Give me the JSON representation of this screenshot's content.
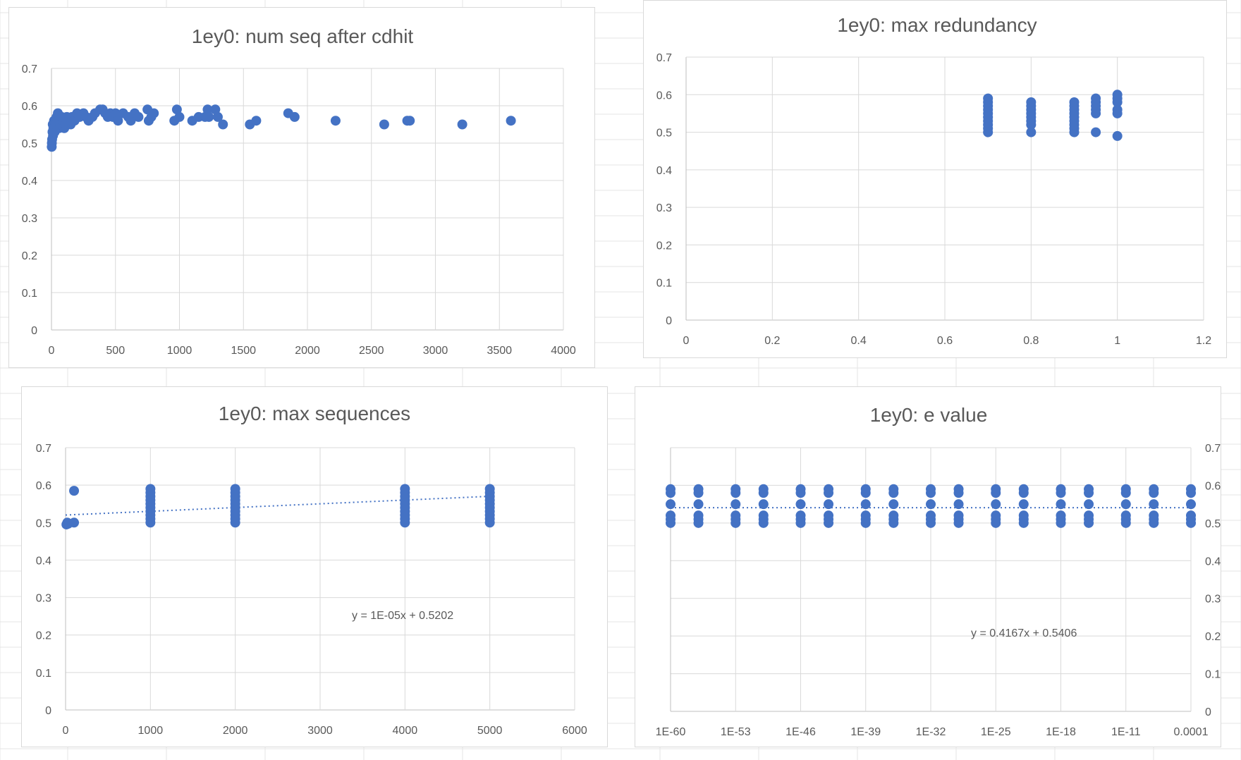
{
  "theme": {
    "marker_color": "#4472c4",
    "grid_color": "#d9d9d9",
    "text_color": "#595959"
  },
  "chart_data": [
    {
      "id": "c1",
      "type": "scatter",
      "title": "1ey0: num seq after cdhit",
      "xlabel": "",
      "ylabel": "",
      "xlim": [
        0,
        4000
      ],
      "ylim": [
        0,
        0.7
      ],
      "xticks": [
        0,
        500,
        1000,
        1500,
        2000,
        2500,
        3000,
        3500,
        4000
      ],
      "xtick_labels": [
        "0",
        "500",
        "1000",
        "1500",
        "2000",
        "2500",
        "3000",
        "3500",
        "4000"
      ],
      "yticks": [
        0,
        0.1,
        0.2,
        0.3,
        0.4,
        0.5,
        0.6,
        0.7
      ],
      "ytick_labels": [
        "0",
        "0.1",
        "0.2",
        "0.3",
        "0.4",
        "0.5",
        "0.6",
        "0.7"
      ],
      "grid": true,
      "legend": "none",
      "series": [
        {
          "points": [
            [
              2,
              0.49
            ],
            [
              3,
              0.5
            ],
            [
              5,
              0.51
            ],
            [
              8,
              0.53
            ],
            [
              10,
              0.55
            ],
            [
              12,
              0.52
            ],
            [
              15,
              0.54
            ],
            [
              20,
              0.56
            ],
            [
              25,
              0.53
            ],
            [
              30,
              0.55
            ],
            [
              40,
              0.57
            ],
            [
              50,
              0.58
            ],
            [
              55,
              0.56
            ],
            [
              60,
              0.54
            ],
            [
              70,
              0.55
            ],
            [
              80,
              0.57
            ],
            [
              90,
              0.56
            ],
            [
              100,
              0.54
            ],
            [
              110,
              0.55
            ],
            [
              120,
              0.57
            ],
            [
              130,
              0.56
            ],
            [
              150,
              0.55
            ],
            [
              160,
              0.57
            ],
            [
              180,
              0.56
            ],
            [
              200,
              0.58
            ],
            [
              220,
              0.57
            ],
            [
              250,
              0.58
            ],
            [
              270,
              0.57
            ],
            [
              290,
              0.56
            ],
            [
              320,
              0.57
            ],
            [
              340,
              0.58
            ],
            [
              380,
              0.59
            ],
            [
              400,
              0.59
            ],
            [
              420,
              0.58
            ],
            [
              440,
              0.57
            ],
            [
              460,
              0.58
            ],
            [
              480,
              0.57
            ],
            [
              500,
              0.58
            ],
            [
              520,
              0.56
            ],
            [
              560,
              0.58
            ],
            [
              600,
              0.57
            ],
            [
              620,
              0.56
            ],
            [
              650,
              0.58
            ],
            [
              680,
              0.57
            ],
            [
              750,
              0.59
            ],
            [
              760,
              0.56
            ],
            [
              780,
              0.57
            ],
            [
              800,
              0.58
            ],
            [
              960,
              0.56
            ],
            [
              980,
              0.59
            ],
            [
              1000,
              0.57
            ],
            [
              1100,
              0.56
            ],
            [
              1150,
              0.57
            ],
            [
              1200,
              0.57
            ],
            [
              1220,
              0.59
            ],
            [
              1230,
              0.57
            ],
            [
              1280,
              0.59
            ],
            [
              1300,
              0.57
            ],
            [
              1340,
              0.55
            ],
            [
              1550,
              0.55
            ],
            [
              1600,
              0.56
            ],
            [
              1850,
              0.58
            ],
            [
              1900,
              0.57
            ],
            [
              2220,
              0.56
            ],
            [
              2600,
              0.55
            ],
            [
              2780,
              0.56
            ],
            [
              2800,
              0.56
            ],
            [
              3210,
              0.55
            ],
            [
              3590,
              0.56
            ]
          ]
        }
      ]
    },
    {
      "id": "c2",
      "type": "scatter",
      "title": "1ey0: max redundancy",
      "xlabel": "",
      "ylabel": "",
      "xlim": [
        0,
        1.2
      ],
      "ylim": [
        0,
        0.7
      ],
      "xticks": [
        0,
        0.2,
        0.4,
        0.6,
        0.8,
        1,
        1.2
      ],
      "xtick_labels": [
        "0",
        "0.2",
        "0.4",
        "0.6",
        "0.8",
        "1",
        "1.2"
      ],
      "yticks": [
        0,
        0.1,
        0.2,
        0.3,
        0.4,
        0.5,
        0.6,
        0.7
      ],
      "ytick_labels": [
        "0",
        "0.1",
        "0.2",
        "0.3",
        "0.4",
        "0.5",
        "0.6",
        "0.7"
      ],
      "grid": true,
      "legend": "none",
      "series": [
        {
          "points": [
            [
              0.7,
              0.5
            ],
            [
              0.7,
              0.51
            ],
            [
              0.7,
              0.52
            ],
            [
              0.7,
              0.53
            ],
            [
              0.7,
              0.54
            ],
            [
              0.7,
              0.55
            ],
            [
              0.7,
              0.56
            ],
            [
              0.7,
              0.57
            ],
            [
              0.7,
              0.58
            ],
            [
              0.7,
              0.59
            ],
            [
              0.8,
              0.5
            ],
            [
              0.8,
              0.52
            ],
            [
              0.8,
              0.53
            ],
            [
              0.8,
              0.54
            ],
            [
              0.8,
              0.55
            ],
            [
              0.8,
              0.56
            ],
            [
              0.8,
              0.57
            ],
            [
              0.8,
              0.58
            ],
            [
              0.9,
              0.5
            ],
            [
              0.9,
              0.51
            ],
            [
              0.9,
              0.52
            ],
            [
              0.9,
              0.53
            ],
            [
              0.9,
              0.54
            ],
            [
              0.9,
              0.55
            ],
            [
              0.9,
              0.56
            ],
            [
              0.9,
              0.57
            ],
            [
              0.9,
              0.58
            ],
            [
              0.95,
              0.5
            ],
            [
              0.95,
              0.55
            ],
            [
              0.95,
              0.56
            ],
            [
              0.95,
              0.57
            ],
            [
              0.95,
              0.58
            ],
            [
              0.95,
              0.59
            ],
            [
              1,
              0.49
            ],
            [
              1,
              0.55
            ],
            [
              1,
              0.56
            ],
            [
              1,
              0.58
            ],
            [
              1,
              0.59
            ],
            [
              1,
              0.6
            ]
          ]
        }
      ]
    },
    {
      "id": "c3",
      "type": "scatter",
      "title": "1ey0: max sequences",
      "xlabel": "",
      "ylabel": "",
      "xlim": [
        0,
        6000
      ],
      "ylim": [
        0,
        0.7
      ],
      "xticks": [
        0,
        1000,
        2000,
        3000,
        4000,
        5000,
        6000
      ],
      "xtick_labels": [
        "0",
        "1000",
        "2000",
        "3000",
        "4000",
        "5000",
        "6000"
      ],
      "yticks": [
        0,
        0.1,
        0.2,
        0.3,
        0.4,
        0.5,
        0.6,
        0.7
      ],
      "ytick_labels": [
        "0",
        "0.1",
        "0.2",
        "0.3",
        "0.4",
        "0.5",
        "0.6",
        "0.7"
      ],
      "grid": true,
      "legend": "none",
      "trendline": {
        "slope": 1e-05,
        "intercept": 0.5202,
        "x_range": [
          0,
          5000
        ]
      },
      "trendline_label": "y = 1E-05x + 0.5202",
      "series": [
        {
          "points": [
            [
              10,
              0.495
            ],
            [
              20,
              0.5
            ],
            [
              30,
              0.497
            ],
            [
              100,
              0.5
            ],
            [
              100,
              0.585
            ],
            [
              1000,
              0.5
            ],
            [
              1000,
              0.51
            ],
            [
              1000,
              0.52
            ],
            [
              1000,
              0.53
            ],
            [
              1000,
              0.54
            ],
            [
              1000,
              0.55
            ],
            [
              1000,
              0.56
            ],
            [
              1000,
              0.57
            ],
            [
              1000,
              0.58
            ],
            [
              1000,
              0.59
            ],
            [
              2000,
              0.5
            ],
            [
              2000,
              0.51
            ],
            [
              2000,
              0.52
            ],
            [
              2000,
              0.53
            ],
            [
              2000,
              0.54
            ],
            [
              2000,
              0.55
            ],
            [
              2000,
              0.56
            ],
            [
              2000,
              0.57
            ],
            [
              2000,
              0.58
            ],
            [
              2000,
              0.59
            ],
            [
              4000,
              0.5
            ],
            [
              4000,
              0.51
            ],
            [
              4000,
              0.52
            ],
            [
              4000,
              0.53
            ],
            [
              4000,
              0.54
            ],
            [
              4000,
              0.55
            ],
            [
              4000,
              0.56
            ],
            [
              4000,
              0.57
            ],
            [
              4000,
              0.58
            ],
            [
              4000,
              0.59
            ],
            [
              5000,
              0.5
            ],
            [
              5000,
              0.51
            ],
            [
              5000,
              0.52
            ],
            [
              5000,
              0.53
            ],
            [
              5000,
              0.54
            ],
            [
              5000,
              0.55
            ],
            [
              5000,
              0.56
            ],
            [
              5000,
              0.57
            ],
            [
              5000,
              0.58
            ],
            [
              5000,
              0.59
            ]
          ]
        }
      ]
    },
    {
      "id": "c4",
      "type": "scatter",
      "title": "1ey0: e value",
      "xlabel": "",
      "ylabel": "",
      "xaxis": "log",
      "xlim": [
        "1E-60",
        "0.0001"
      ],
      "ylim": [
        0,
        0.7
      ],
      "y_axis_side": "right",
      "xtick_labels": [
        "1E-60",
        "1E-53",
        "1E-46",
        "1E-39",
        "1E-32",
        "1E-25",
        "1E-18",
        "1E-11",
        "0.0001"
      ],
      "yticks": [
        0,
        0.1,
        0.2,
        0.3,
        0.4,
        0.5,
        0.6,
        0.7
      ],
      "ytick_labels": [
        "0",
        "0.1",
        "0.2",
        "0.3",
        "0.4",
        "0.5",
        "0.6",
        "0.7"
      ],
      "grid": true,
      "legend": "none",
      "trendline": {
        "slope": 0.4167,
        "intercept": 0.5406
      },
      "trendline_label": "y = 0.4167x + 0.5406",
      "x_values": [
        "1E-60",
        "1E-57",
        "1E-53",
        "1E-50",
        "1E-46",
        "1E-43",
        "1E-39",
        "1E-36",
        "1E-32",
        "1E-29",
        "1E-25",
        "1E-22",
        "1E-18",
        "1E-15",
        "1E-11",
        "1E-8",
        "1E-4"
      ],
      "series": [
        {
          "y_values": [
            0.5,
            0.51,
            0.52,
            0.55,
            0.58,
            0.59
          ]
        }
      ]
    }
  ]
}
